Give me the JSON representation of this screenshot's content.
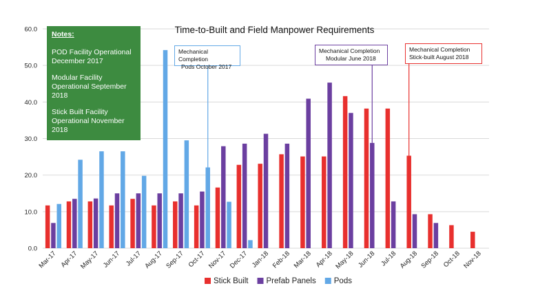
{
  "chart_data": {
    "type": "bar",
    "title": "Time-to-Built and Field Manpower Requirements",
    "xlabel": "",
    "ylabel": "",
    "ylim": [
      0,
      60
    ],
    "yticks": [
      "0.0",
      "10.0",
      "20.0",
      "30.0",
      "40.0",
      "50.0",
      "60.0"
    ],
    "grid": true,
    "legend_position": "bottom",
    "categories": [
      "Mar-17",
      "Apr-17",
      "May-17",
      "Jun-17",
      "Jul-17",
      "Aug-17",
      "Sep-17",
      "Oct-17",
      "Nov-17",
      "Dec-17",
      "Jan-18",
      "Feb-18",
      "Mar-18",
      "Apr-18",
      "May-18",
      "Jun-18",
      "Jul-18",
      "Aug-18",
      "Sep-18",
      "Oct-18",
      "Nov-18"
    ],
    "series": [
      {
        "name": "Stick Built",
        "color": "#e8302e",
        "values": [
          11.7,
          12.8,
          12.8,
          11.7,
          13.5,
          11.7,
          12.8,
          11.7,
          16.6,
          22.8,
          23.1,
          25.7,
          25.1,
          25.1,
          41.6,
          38.2,
          38.2,
          25.3,
          9.3,
          6.3,
          4.5
        ]
      },
      {
        "name": "Prefab Panels",
        "color": "#6b3fa0",
        "values": [
          6.9,
          13.5,
          13.6,
          15.0,
          15.0,
          15.0,
          15.0,
          15.5,
          27.9,
          28.6,
          31.3,
          28.6,
          40.9,
          45.3,
          37.0,
          28.8,
          12.8,
          9.3,
          6.9,
          null,
          null
        ]
      },
      {
        "name": "Pods",
        "color": "#62a8e6",
        "values": [
          12.1,
          24.2,
          26.5,
          26.5,
          19.8,
          54.2,
          29.5,
          22.1,
          12.7,
          2.2,
          null,
          null,
          null,
          null,
          null,
          null,
          null,
          null,
          null,
          null,
          null
        ]
      }
    ]
  },
  "notes": {
    "title": "Notes:",
    "items": [
      "POD Facility Operational December 2017",
      "Modular Facility Operational September 2018",
      "Stick Built Facility Operational November 2018"
    ]
  },
  "callouts": [
    {
      "lines": [
        "Mechanical Completion",
        "Pods October 2017"
      ],
      "color": "#62a8e6",
      "month_index": 7,
      "series_index": 2
    },
    {
      "lines": [
        "Mechanical Completion",
        "Modular June 2018"
      ],
      "color": "#6b3fa0",
      "month_index": 15,
      "series_index": 1
    },
    {
      "lines": [
        "Mechanical Completion",
        "Stick-built August 2018"
      ],
      "color": "#e8302e",
      "month_index": 17,
      "series_index": 0
    }
  ]
}
